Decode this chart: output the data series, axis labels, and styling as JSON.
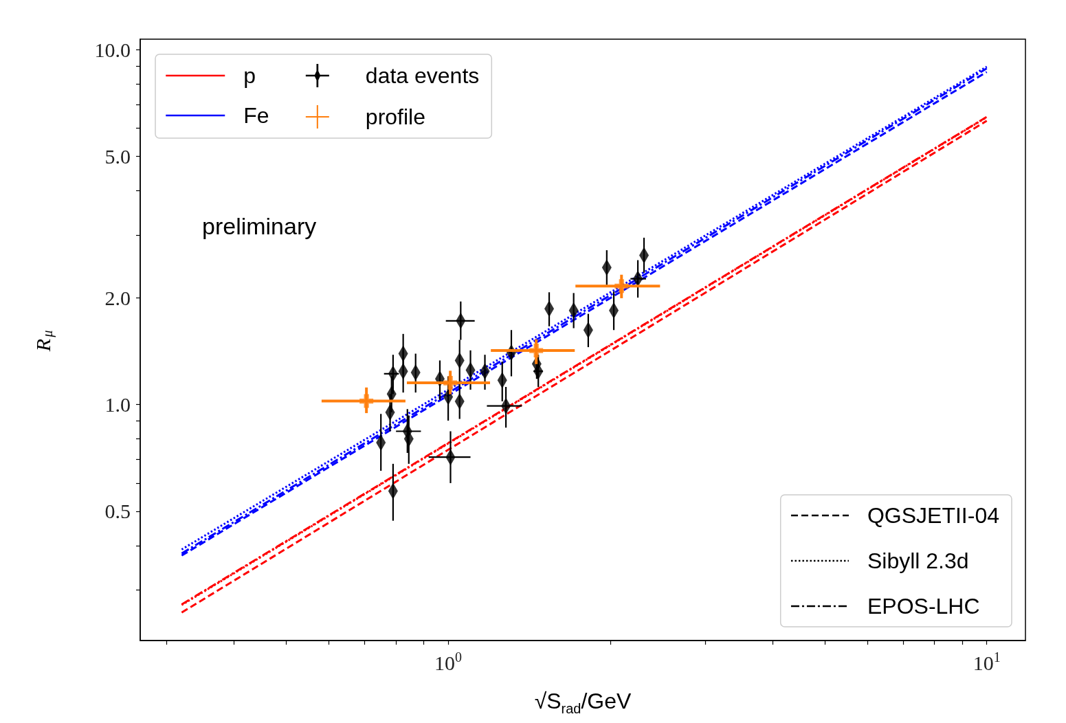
{
  "chart_data": {
    "type": "line",
    "xlabel": "√S$_{rad}$/GeV",
    "ylabel": "R$_{μ}$",
    "log": "xy",
    "xlim": [
      0.268,
      11.8
    ],
    "ylim": [
      0.216,
      10.7
    ],
    "xticks": [
      {
        "value": 0.3,
        "label": null
      },
      {
        "value": 0.4,
        "label": null
      },
      {
        "value": 0.5,
        "label": null
      },
      {
        "value": 0.6,
        "label": null
      },
      {
        "value": 0.7,
        "label": null
      },
      {
        "value": 0.8,
        "label": null
      },
      {
        "value": 0.9,
        "label": null
      },
      {
        "value": 1,
        "label": "10$^{0}$"
      },
      {
        "value": 2,
        "label": null
      },
      {
        "value": 3,
        "label": null
      },
      {
        "value": 4,
        "label": null
      },
      {
        "value": 5,
        "label": null
      },
      {
        "value": 6,
        "label": null
      },
      {
        "value": 7,
        "label": null
      },
      {
        "value": 8,
        "label": null
      },
      {
        "value": 9,
        "label": null
      },
      {
        "value": 10,
        "label": "10$^{1}$"
      }
    ],
    "yticks": [
      {
        "value": 0.3,
        "label": null
      },
      {
        "value": 0.4,
        "label": null
      },
      0.5,
      {
        "value": 0.6,
        "label": null
      },
      {
        "value": 0.7,
        "label": null
      },
      {
        "value": 0.8,
        "label": null
      },
      {
        "value": 0.9,
        "label": null
      },
      {
        "value": 1,
        "label": "1.0"
      },
      {
        "value": 2,
        "label": "2.0"
      },
      {
        "value": 3,
        "label": null
      },
      {
        "value": 4,
        "label": null
      },
      {
        "value": 5,
        "label": "5.0"
      },
      {
        "value": 6,
        "label": null
      },
      {
        "value": 7,
        "label": null
      },
      {
        "value": 8,
        "label": null
      },
      {
        "value": 9,
        "label": null
      },
      {
        "value": 10,
        "label": "10.0"
      }
    ],
    "grid": false,
    "legend": "top left",
    "annotations": [
      "preliminary"
    ],
    "series": [
      {
        "name": "p",
        "color": "#ff0000",
        "line_style": "dashed",
        "x": [
          0.32,
          10
        ],
        "values": [
          0.259,
          6.3
        ]
      },
      {
        "color": "#ff0000",
        "line_style": "dotted",
        "x": [
          0.32,
          10
        ],
        "values": [
          0.272,
          6.45
        ]
      },
      {
        "color": "#ff0000",
        "line_style": "dashdot",
        "x": [
          0.32,
          10
        ],
        "values": [
          0.273,
          6.46
        ]
      },
      {
        "name": "Fe",
        "color": "#0000ff",
        "line_style": "dashed",
        "x": [
          0.32,
          10
        ],
        "values": [
          0.375,
          8.65
        ]
      },
      {
        "color": "#0000ff",
        "line_style": "dotted",
        "x": [
          0.32,
          10
        ],
        "values": [
          0.39,
          8.95
        ]
      },
      {
        "color": "#0000ff",
        "line_style": "dashdot",
        "x": [
          0.32,
          10
        ],
        "values": [
          0.38,
          8.85
        ]
      },
      {
        "name": "data events",
        "type": "scatter",
        "color": "#000000",
        "marker": "diamond",
        "x": [
          0.75,
          0.79,
          0.78,
          0.785,
          0.79,
          0.825,
          0.825,
          0.84,
          0.845,
          0.87,
          0.965,
          1.01,
          1.0,
          1.05,
          1.055,
          1.05,
          1.1,
          1.17,
          1.26,
          1.28,
          1.31,
          1.46,
          1.47,
          1.54,
          1.71,
          1.82,
          1.97,
          2.03,
          2.25,
          2.31
        ],
        "values": [
          0.78,
          0.57,
          0.95,
          1.07,
          1.22,
          1.39,
          1.24,
          0.84,
          0.8,
          1.23,
          1.18,
          0.71,
          1.05,
          1.33,
          1.72,
          1.02,
          1.25,
          1.24,
          1.17,
          0.99,
          1.4,
          1.3,
          1.24,
          1.86,
          1.84,
          1.62,
          2.43,
          1.84,
          2.26,
          2.63
        ],
        "errors": [
          [
            0.65,
            0.94
          ],
          [
            0.47,
            0.68
          ],
          [
            0.84,
            1.07
          ],
          [
            0.95,
            1.2
          ],
          [
            1.07,
            1.38
          ],
          [
            1.22,
            1.58
          ],
          [
            1.08,
            1.42
          ],
          [
            0.73,
            0.97
          ],
          [
            0.68,
            0.93
          ],
          [
            1.08,
            1.39
          ],
          [
            1.03,
            1.33
          ],
          [
            0.6,
            0.84
          ],
          [
            0.9,
            1.2
          ],
          [
            1.15,
            1.52
          ],
          [
            1.52,
            1.95
          ],
          [
            0.91,
            1.15
          ],
          [
            1.1,
            1.42
          ],
          [
            1.1,
            1.38
          ],
          [
            1.02,
            1.32
          ],
          [
            0.86,
            1.12
          ],
          [
            1.2,
            1.62
          ],
          [
            1.18,
            1.42
          ],
          [
            1.12,
            1.38
          ],
          [
            1.66,
            2.07
          ],
          [
            1.64,
            2.06
          ],
          [
            1.45,
            1.8
          ],
          [
            2.17,
            2.72
          ],
          [
            1.62,
            2.08
          ],
          [
            2.0,
            2.55
          ],
          [
            2.35,
            2.95
          ]
        ],
        "xerrors": [
          null,
          null,
          null,
          null,
          [
            0.76,
            0.81
          ],
          null,
          null,
          [
            0.8,
            0.89
          ],
          null,
          null,
          null,
          [
            0.92,
            1.1
          ],
          null,
          null,
          [
            0.99,
            1.12
          ],
          null,
          null,
          null,
          null,
          [
            1.18,
            1.37
          ],
          null,
          null,
          [
            1.44,
            1.5
          ],
          null,
          null,
          null,
          null,
          null,
          [
            2.18,
            2.33
          ],
          null
        ]
      },
      {
        "name": "profile",
        "type": "scatter",
        "color": "#ff7f0e",
        "marker": "cross",
        "x": [
          0.705,
          1.009,
          1.457,
          2.098
        ],
        "values": [
          1.022,
          1.15,
          1.418,
          2.155
        ],
        "errors": [
          [
            0.945,
            1.116
          ],
          [
            1.068,
            1.244
          ],
          [
            1.299,
            1.526
          ],
          [
            1.992,
            2.32
          ]
        ],
        "xerrors": [
          [
            0.582,
            0.833
          ],
          [
            0.838,
            1.196
          ],
          [
            1.2,
            1.718
          ],
          [
            1.723,
            2.474
          ]
        ]
      },
      {
        "name": "QGSJETII-04",
        "color": "#000000",
        "line_style": "dashed"
      },
      {
        "name": "Sibyll 2.3d",
        "color": "#000000",
        "line_style": "dotted"
      },
      {
        "name": "EPOS-LHC",
        "color": "#000000",
        "line_style": "dashdot"
      }
    ]
  }
}
